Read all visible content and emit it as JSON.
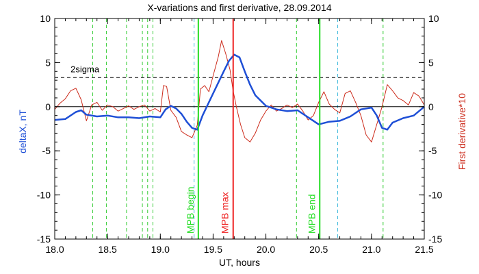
{
  "chart_data": {
    "type": "line",
    "title": "X-variations and first derivative, 28.09.2014",
    "xlabel": "UT, hours",
    "ylabel_left": "deltaX, nT",
    "ylabel_right": "First derivative*10",
    "xlim": [
      18.0,
      21.5
    ],
    "ylim": [
      -15,
      10
    ],
    "x_ticks": [
      "18.0",
      "18.5",
      "19.0",
      "19.5",
      "20.0",
      "20.5",
      "21.0",
      "21.5"
    ],
    "y_ticks": [
      "-15",
      "-10",
      "-5",
      "0",
      "5",
      "10"
    ],
    "threshold": {
      "label": "2sigma",
      "y": 3.3
    },
    "markers": [
      {
        "label": "MPB begin",
        "x": 19.36,
        "color": "#22dd22"
      },
      {
        "label": "MPB max",
        "x": 19.69,
        "color": "#ee2222"
      },
      {
        "label": "MPB end",
        "x": 20.51,
        "color": "#22dd22"
      }
    ],
    "green_dashed_x": [
      18.36,
      18.49,
      18.68,
      18.83,
      18.88,
      18.93,
      20.29,
      21.11
    ],
    "cyan_dashed_x": [
      19.32,
      20.68
    ],
    "series": [
      {
        "name": "deltaX",
        "color": "#1e4fd6",
        "x": [
          18.0,
          18.1,
          18.2,
          18.25,
          18.3,
          18.4,
          18.5,
          18.6,
          18.7,
          18.8,
          18.9,
          19.0,
          19.05,
          19.1,
          19.15,
          19.2,
          19.25,
          19.3,
          19.35,
          19.4,
          19.5,
          19.6,
          19.65,
          19.7,
          19.75,
          19.8,
          19.85,
          19.9,
          20.0,
          20.1,
          20.2,
          20.3,
          20.4,
          20.5,
          20.6,
          20.7,
          20.8,
          20.9,
          21.0,
          21.05,
          21.1,
          21.15,
          21.2,
          21.3,
          21.4,
          21.5
        ],
        "y": [
          -1.5,
          -1.4,
          -0.6,
          -0.4,
          -0.9,
          -1.1,
          -1.0,
          -1.2,
          -1.2,
          -1.3,
          -1.1,
          -1.2,
          -0.3,
          0.1,
          -0.2,
          -0.8,
          -1.7,
          -2.4,
          -2.6,
          -1.0,
          1.5,
          4.0,
          5.2,
          5.9,
          5.6,
          4.0,
          2.5,
          1.3,
          0.1,
          -0.3,
          -0.5,
          -0.4,
          -1.2,
          -2.0,
          -1.7,
          -1.6,
          -1.1,
          -0.3,
          -0.1,
          -1.0,
          -2.4,
          -2.6,
          -1.8,
          -1.3,
          -1.0,
          0.0
        ]
      },
      {
        "name": "First derivative*10",
        "color": "#cc2a1a",
        "x": [
          18.0,
          18.05,
          18.1,
          18.15,
          18.2,
          18.25,
          18.3,
          18.35,
          18.4,
          18.45,
          18.5,
          18.55,
          18.6,
          18.65,
          18.7,
          18.75,
          18.8,
          18.85,
          18.9,
          18.95,
          19.0,
          19.03,
          19.06,
          19.1,
          19.15,
          19.2,
          19.25,
          19.3,
          19.35,
          19.38,
          19.42,
          19.46,
          19.5,
          19.55,
          19.58,
          19.62,
          19.66,
          19.69,
          19.72,
          19.76,
          19.8,
          19.85,
          19.9,
          19.95,
          20.0,
          20.05,
          20.1,
          20.15,
          20.2,
          20.25,
          20.3,
          20.35,
          20.4,
          20.45,
          20.5,
          20.55,
          20.6,
          20.65,
          20.7,
          20.75,
          20.8,
          20.85,
          20.9,
          20.95,
          21.0,
          21.05,
          21.1,
          21.15,
          21.2,
          21.25,
          21.3,
          21.35,
          21.4,
          21.45,
          21.5
        ],
        "y": [
          -0.3,
          0.4,
          0.9,
          1.8,
          2.1,
          0.8,
          -1.6,
          0.2,
          0.5,
          -0.4,
          0.2,
          0.0,
          -0.5,
          -0.2,
          0.1,
          -0.3,
          0.0,
          0.2,
          -0.5,
          -0.2,
          -0.6,
          2.4,
          2.3,
          -0.4,
          -1.2,
          -2.8,
          -3.2,
          -3.5,
          -2.1,
          2.0,
          2.4,
          1.7,
          3.5,
          5.7,
          7.5,
          6.0,
          4.2,
          1.8,
          0.0,
          -2.0,
          -3.5,
          -4.0,
          -3.0,
          -1.5,
          -0.5,
          0.2,
          -0.5,
          -0.2,
          0.2,
          -0.1,
          0.3,
          -0.5,
          -1.5,
          -1.0,
          0.5,
          1.7,
          0.3,
          -0.3,
          -0.7,
          1.5,
          1.8,
          0.5,
          -1.0,
          -3.2,
          -4.0,
          -2.0,
          0.0,
          2.5,
          1.8,
          1.0,
          0.7,
          0.2,
          1.6,
          1.2,
          0.2
        ]
      }
    ]
  }
}
